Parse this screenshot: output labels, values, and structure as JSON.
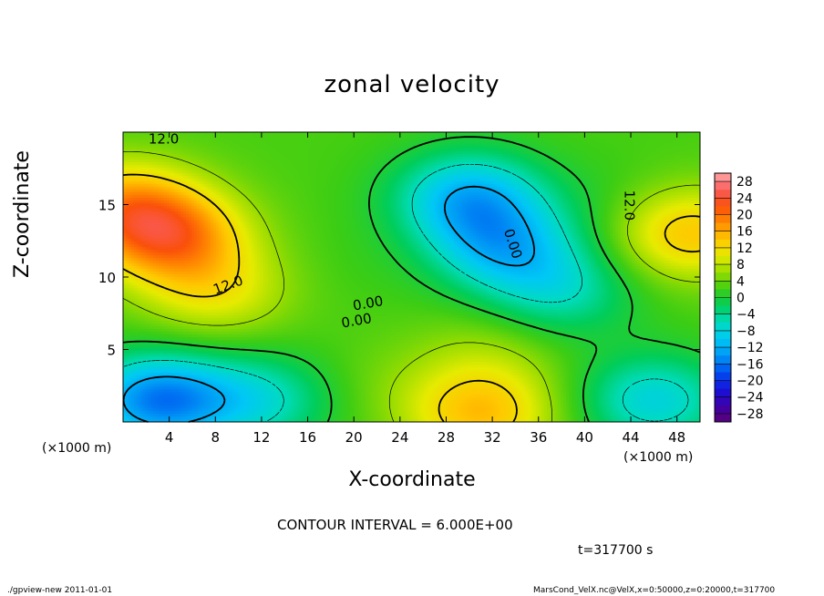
{
  "chart_data": {
    "type": "heatmap",
    "title": "zonal velocity",
    "xlabel": "X-coordinate",
    "ylabel": "Z-coordinate",
    "x_unit": "(×1000 m)",
    "y_unit": "(×1000 m)",
    "xlim": [
      0,
      50
    ],
    "ylim": [
      0,
      20
    ],
    "x_ticks": [
      4,
      8,
      12,
      16,
      20,
      24,
      28,
      32,
      36,
      40,
      44,
      48
    ],
    "y_ticks": [
      5,
      10,
      15
    ],
    "colorbar": {
      "levels": [
        28,
        24,
        20,
        16,
        12,
        8,
        4,
        0,
        -4,
        -8,
        -12,
        -16,
        -20,
        -24,
        -28
      ],
      "range": [
        -30,
        30
      ]
    },
    "contour_labels": [
      "12.0",
      "12.0",
      "0.00",
      "0.00",
      "12.0",
      "0.00"
    ],
    "contour_interval": "CONTOUR INTERVAL = 6.000E+00",
    "time_label": "t=317700 s",
    "field_features": [
      {
        "x": 4,
        "z": 12.8,
        "value": 18
      },
      {
        "x": 0,
        "z": 15,
        "value": 14
      },
      {
        "x": 8,
        "z": 9,
        "value": 10
      },
      {
        "x": 30,
        "z": 15.5,
        "value": -11
      },
      {
        "x": 33,
        "z": 12,
        "value": -9
      },
      {
        "x": 38,
        "z": 9,
        "value": -5
      },
      {
        "x": 49,
        "z": 13,
        "value": 14
      },
      {
        "x": 3,
        "z": 1.5,
        "value": -15
      },
      {
        "x": 12,
        "z": 1.5,
        "value": -6
      },
      {
        "x": 46,
        "z": 1.5,
        "value": -8
      },
      {
        "x": 31,
        "z": 0.5,
        "value": 14
      },
      {
        "x": 31.5,
        "z": 4.5,
        "value": 6
      },
      {
        "x": 22,
        "z": 2.5,
        "value": 4
      },
      {
        "x": 20,
        "z": 11,
        "value": 2
      },
      {
        "x": 42,
        "z": 15,
        "value": 1
      }
    ]
  },
  "footer": {
    "left": "./gpview-new   2011-01-01",
    "right": "MarsCond_VelX.nc@VelX,x=0:50000,z=0:20000,t=317700"
  }
}
